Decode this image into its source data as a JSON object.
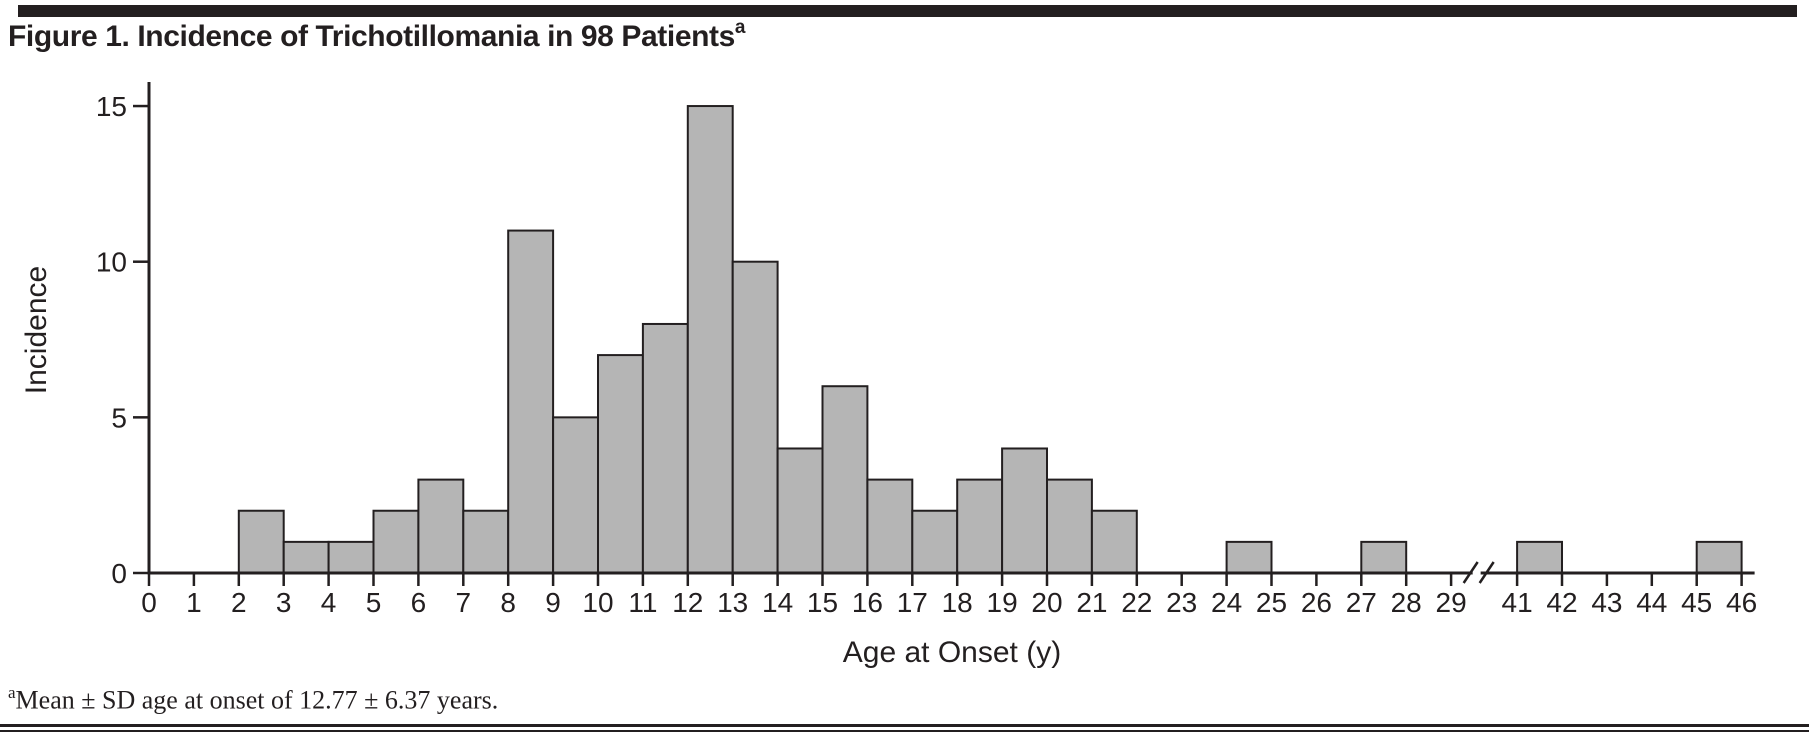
{
  "figure": {
    "title": "Figure 1. Incidence of Trichotillomania in 98 Patients",
    "title_superscript": "a",
    "footnote_marker": "a",
    "footnote_text": "Mean ± SD age at onset of 12.77 ± 6.37 years."
  },
  "chart_data": {
    "type": "bar",
    "subtype": "histogram",
    "title": "Figure 1. Incidence of Trichotillomania in 98 Patients",
    "xlabel": "Age at Onset (y)",
    "ylabel": "Incidence",
    "ylim": [
      0,
      15
    ],
    "yticks": [
      0,
      5,
      10,
      15
    ],
    "xticks": [
      0,
      1,
      2,
      3,
      4,
      5,
      6,
      7,
      8,
      9,
      10,
      11,
      12,
      13,
      14,
      15,
      16,
      17,
      18,
      19,
      20,
      21,
      22,
      23,
      24,
      25,
      26,
      27,
      28,
      29,
      41,
      42,
      43,
      44,
      45,
      46
    ],
    "x_axis_break": {
      "after": 29,
      "resume_at": 41
    },
    "grid": false,
    "legend": "none",
    "n_total": 98,
    "bar_color": "#b5b5b5",
    "line_color": "#231f20",
    "bins": [
      {
        "age": 0,
        "count": 0
      },
      {
        "age": 1,
        "count": 0
      },
      {
        "age": 2,
        "count": 2
      },
      {
        "age": 3,
        "count": 1
      },
      {
        "age": 4,
        "count": 1
      },
      {
        "age": 5,
        "count": 2
      },
      {
        "age": 6,
        "count": 3
      },
      {
        "age": 7,
        "count": 2
      },
      {
        "age": 8,
        "count": 11
      },
      {
        "age": 9,
        "count": 5
      },
      {
        "age": 10,
        "count": 7
      },
      {
        "age": 11,
        "count": 8
      },
      {
        "age": 12,
        "count": 15
      },
      {
        "age": 13,
        "count": 10
      },
      {
        "age": 14,
        "count": 4
      },
      {
        "age": 15,
        "count": 6
      },
      {
        "age": 16,
        "count": 3
      },
      {
        "age": 17,
        "count": 2
      },
      {
        "age": 18,
        "count": 3
      },
      {
        "age": 19,
        "count": 4
      },
      {
        "age": 20,
        "count": 3
      },
      {
        "age": 21,
        "count": 2
      },
      {
        "age": 22,
        "count": 0
      },
      {
        "age": 23,
        "count": 0
      },
      {
        "age": 24,
        "count": 1
      },
      {
        "age": 25,
        "count": 0
      },
      {
        "age": 26,
        "count": 0
      },
      {
        "age": 27,
        "count": 1
      },
      {
        "age": 28,
        "count": 0
      },
      {
        "age": 41,
        "count": 1
      },
      {
        "age": 42,
        "count": 0
      },
      {
        "age": 43,
        "count": 0
      },
      {
        "age": 44,
        "count": 0
      },
      {
        "age": 45,
        "count": 1
      }
    ]
  }
}
